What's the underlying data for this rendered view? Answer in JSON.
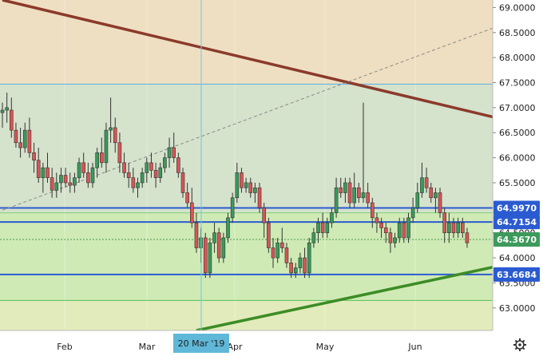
{
  "chart_data": {
    "type": "candlestick",
    "title": "",
    "ylim": [
      62.55,
      69.15
    ],
    "y_ticks": [
      "69.0000",
      "68.5000",
      "68.0000",
      "67.5000",
      "67.0000",
      "66.5000",
      "66.0000",
      "65.5000",
      "65.0000",
      "64.5000",
      "64.0000",
      "63.5000",
      "63.0000"
    ],
    "x_ticks": [
      "Feb",
      "Mar",
      "Apr",
      "May",
      "Jun"
    ],
    "crosshair_date_label": "20 Mar '19",
    "price_labels": [
      {
        "text": "64.9970",
        "value": 64.997,
        "style": "blue"
      },
      {
        "text": "64.7154",
        "value": 64.7154,
        "style": "blue"
      },
      {
        "text": "64.3670",
        "value": 64.367,
        "style": "green"
      },
      {
        "text": "63.6684",
        "value": 63.6684,
        "style": "blue"
      }
    ],
    "horizontal_levels": [
      67.47,
      64.997,
      64.9,
      64.7154,
      63.6684,
      63.15
    ],
    "zones": [
      {
        "from": 67.47,
        "to": 69.15,
        "color": "#eedfc2"
      },
      {
        "from": 64.9,
        "to": 67.47,
        "color": "#d5e2cc"
      },
      {
        "from": 63.15,
        "to": 64.9,
        "color": "#cfeab5"
      },
      {
        "from": 62.55,
        "to": 63.15,
        "color": "#e2ebbb"
      }
    ],
    "trend_lines": [
      {
        "name": "resistance",
        "color": "#8b3a2a",
        "x1": 0,
        "y1": 69.15,
        "x2": 121,
        "y2": 66.55
      },
      {
        "name": "support",
        "color": "#3c8c26",
        "x1": 43,
        "y1": 62.55,
        "x2": 121,
        "y2": 64.05
      },
      {
        "name": "dashed",
        "color": "#8a8a8a",
        "x1": 0,
        "y1": 64.95,
        "x2": 121,
        "y2": 69.0
      }
    ],
    "ohlc": [
      [
        66.9,
        67.1,
        66.6,
        66.95
      ],
      [
        66.95,
        67.3,
        66.7,
        67.0
      ],
      [
        66.95,
        67.2,
        66.4,
        66.55
      ],
      [
        66.55,
        66.7,
        66.2,
        66.3
      ],
      [
        66.3,
        66.6,
        66.0,
        66.2
      ],
      [
        66.2,
        66.7,
        66.1,
        66.55
      ],
      [
        66.55,
        66.8,
        66.0,
        66.1
      ],
      [
        66.1,
        66.3,
        65.7,
        65.95
      ],
      [
        65.95,
        66.2,
        65.5,
        65.6
      ],
      [
        65.6,
        65.9,
        65.3,
        65.8
      ],
      [
        65.8,
        66.1,
        65.5,
        65.6
      ],
      [
        65.6,
        65.8,
        65.2,
        65.35
      ],
      [
        65.35,
        65.7,
        65.2,
        65.5
      ],
      [
        65.5,
        65.8,
        65.3,
        65.65
      ],
      [
        65.65,
        65.8,
        65.4,
        65.5
      ],
      [
        65.5,
        65.7,
        65.3,
        65.45
      ],
      [
        65.45,
        65.7,
        65.3,
        65.6
      ],
      [
        65.6,
        66.0,
        65.5,
        65.9
      ],
      [
        65.9,
        66.1,
        65.6,
        65.7
      ],
      [
        65.7,
        65.9,
        65.4,
        65.5
      ],
      [
        65.5,
        65.9,
        65.4,
        65.8
      ],
      [
        65.8,
        66.2,
        65.6,
        66.1
      ],
      [
        66.1,
        66.4,
        65.8,
        65.9
      ],
      [
        65.9,
        66.7,
        65.7,
        66.55
      ],
      [
        66.55,
        67.2,
        66.3,
        66.6
      ],
      [
        66.6,
        66.8,
        66.1,
        66.3
      ],
      [
        66.3,
        66.5,
        65.7,
        65.9
      ],
      [
        65.9,
        66.1,
        65.6,
        65.7
      ],
      [
        65.7,
        65.9,
        65.4,
        65.6
      ],
      [
        65.6,
        65.8,
        65.3,
        65.4
      ],
      [
        65.4,
        65.6,
        65.2,
        65.5
      ],
      [
        65.5,
        65.8,
        65.4,
        65.7
      ],
      [
        65.7,
        66.0,
        65.5,
        65.9
      ],
      [
        65.9,
        66.1,
        65.6,
        65.75
      ],
      [
        65.75,
        65.9,
        65.4,
        65.6
      ],
      [
        65.6,
        65.9,
        65.5,
        65.8
      ],
      [
        65.8,
        66.1,
        65.7,
        66.0
      ],
      [
        66.0,
        66.4,
        65.8,
        66.2
      ],
      [
        66.2,
        66.5,
        65.9,
        66.0
      ],
      [
        66.0,
        66.1,
        65.6,
        65.7
      ],
      [
        65.7,
        65.8,
        65.2,
        65.3
      ],
      [
        65.3,
        65.5,
        65.0,
        65.1
      ],
      [
        65.1,
        65.4,
        64.6,
        64.7
      ],
      [
        64.7,
        64.9,
        64.1,
        64.2
      ],
      [
        64.2,
        64.6,
        63.9,
        64.4
      ],
      [
        64.4,
        64.5,
        63.6,
        63.7
      ],
      [
        63.7,
        64.4,
        63.6,
        64.3
      ],
      [
        64.3,
        64.7,
        64.1,
        64.5
      ],
      [
        64.5,
        64.6,
        63.9,
        64.0
      ],
      [
        64.0,
        64.5,
        63.9,
        64.4
      ],
      [
        64.4,
        64.9,
        64.3,
        64.8
      ],
      [
        64.8,
        65.3,
        64.7,
        65.2
      ],
      [
        65.2,
        65.9,
        65.1,
        65.7
      ],
      [
        65.7,
        65.8,
        65.3,
        65.4
      ],
      [
        65.4,
        65.6,
        65.3,
        65.5
      ],
      [
        65.5,
        65.6,
        65.2,
        65.3
      ],
      [
        65.3,
        65.5,
        65.1,
        65.4
      ],
      [
        65.4,
        65.5,
        64.9,
        65.0
      ],
      [
        65.0,
        65.1,
        64.4,
        64.7
      ],
      [
        64.7,
        64.8,
        64.1,
        64.2
      ],
      [
        64.2,
        64.4,
        63.8,
        64.0
      ],
      [
        64.0,
        64.4,
        63.9,
        64.3
      ],
      [
        64.3,
        64.6,
        64.1,
        64.2
      ],
      [
        64.2,
        64.3,
        63.8,
        63.9
      ],
      [
        63.9,
        64.0,
        63.6,
        63.7
      ],
      [
        63.7,
        63.9,
        63.6,
        63.8
      ],
      [
        63.8,
        64.1,
        63.7,
        64.0
      ],
      [
        64.0,
        64.2,
        63.6,
        63.7
      ],
      [
        63.7,
        64.4,
        63.6,
        64.3
      ],
      [
        64.3,
        64.6,
        64.2,
        64.5
      ],
      [
        64.5,
        64.8,
        64.3,
        64.7
      ],
      [
        64.7,
        64.9,
        64.4,
        64.5
      ],
      [
        64.5,
        64.8,
        64.4,
        64.7
      ],
      [
        64.7,
        65.0,
        64.6,
        64.9
      ],
      [
        64.9,
        65.6,
        64.8,
        65.4
      ],
      [
        65.4,
        65.6,
        65.2,
        65.3
      ],
      [
        65.3,
        65.6,
        65.1,
        65.5
      ],
      [
        65.5,
        65.6,
        65.0,
        65.1
      ],
      [
        65.1,
        65.7,
        65.0,
        65.4
      ],
      [
        65.4,
        65.5,
        65.1,
        65.2
      ],
      [
        65.2,
        67.1,
        65.1,
        65.3
      ],
      [
        65.3,
        65.5,
        65.0,
        65.1
      ],
      [
        65.1,
        65.2,
        64.6,
        64.8
      ],
      [
        64.8,
        64.9,
        64.5,
        64.7
      ],
      [
        64.7,
        64.8,
        64.4,
        64.6
      ],
      [
        64.6,
        64.7,
        64.3,
        64.5
      ],
      [
        64.5,
        64.6,
        64.1,
        64.3
      ],
      [
        64.3,
        64.5,
        64.2,
        64.4
      ],
      [
        64.4,
        64.8,
        64.3,
        64.7
      ],
      [
        64.7,
        64.8,
        64.3,
        64.4
      ],
      [
        64.4,
        64.9,
        64.3,
        64.8
      ],
      [
        64.8,
        65.2,
        64.7,
        65.0
      ],
      [
        65.0,
        65.5,
        64.9,
        65.3
      ],
      [
        65.3,
        65.9,
        65.2,
        65.6
      ],
      [
        65.6,
        65.8,
        65.3,
        65.4
      ],
      [
        65.4,
        65.5,
        65.1,
        65.2
      ],
      [
        65.2,
        65.4,
        64.9,
        65.3
      ],
      [
        65.3,
        65.4,
        64.8,
        64.9
      ],
      [
        64.9,
        65.0,
        64.3,
        64.5
      ],
      [
        64.5,
        64.9,
        64.3,
        64.7
      ],
      [
        64.7,
        64.8,
        64.4,
        64.5
      ],
      [
        64.5,
        64.8,
        64.4,
        64.7
      ],
      [
        64.7,
        64.8,
        64.4,
        64.5
      ],
      [
        64.5,
        64.6,
        64.2,
        64.3
      ]
    ]
  },
  "ui": {
    "settings_icon": "gear-icon"
  }
}
